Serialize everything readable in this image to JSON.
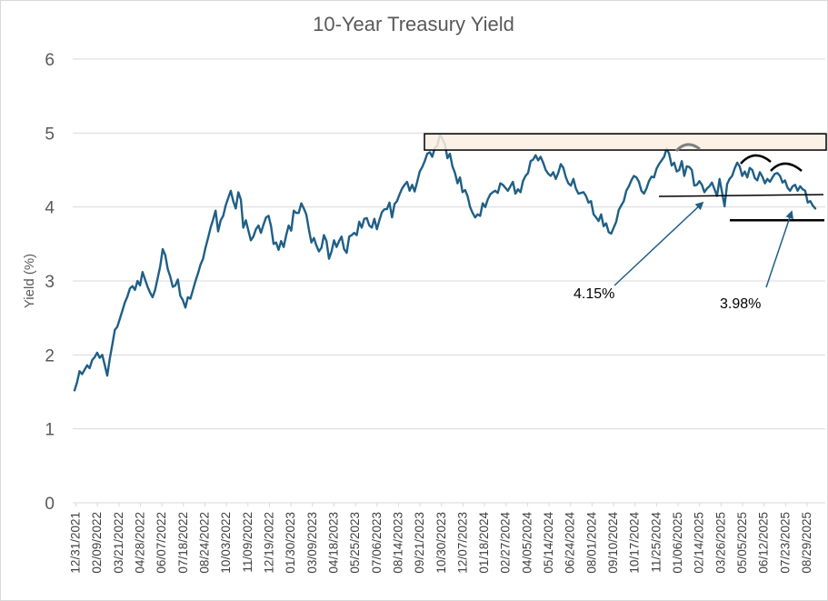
{
  "chart_data": {
    "type": "line",
    "title": "10-Year Treasury Yield",
    "xlabel": "",
    "ylabel": "Yield (%)",
    "ylim": [
      0,
      6
    ],
    "yticks": [
      0,
      1,
      2,
      3,
      4,
      5,
      6
    ],
    "grid": true,
    "line_color": "#1f5f86",
    "x_ticks": [
      "12/31/2021",
      "02/09/2022",
      "03/21/2022",
      "04/28/2022",
      "06/07/2022",
      "07/18/2022",
      "08/24/2022",
      "10/03/2022",
      "11/09/2022",
      "12/19/2022",
      "01/30/2023",
      "03/09/2023",
      "04/18/2023",
      "05/25/2023",
      "07/06/2023",
      "08/14/2023",
      "09/21/2023",
      "10/30/2023",
      "12/07/2023",
      "01/18/2024",
      "02/27/2024",
      "04/05/2024",
      "05/14/2024",
      "06/24/2024",
      "08/01/2024",
      "09/10/2024",
      "10/17/2024",
      "11/25/2024",
      "01/06/2025",
      "02/14/2025",
      "03/26/2025",
      "05/05/2025",
      "06/12/2025",
      "07/23/2025",
      "08/29/2025"
    ],
    "series": [
      {
        "name": "10-Year Treasury Yield",
        "start_date": "12/31/2021",
        "interval": "approx. 2 trading days",
        "values": [
          1.52,
          1.63,
          1.78,
          1.74,
          1.8,
          1.86,
          1.82,
          1.93,
          1.97,
          2.03,
          1.96,
          2.0,
          1.86,
          1.72,
          1.95,
          2.14,
          2.34,
          2.38,
          2.49,
          2.6,
          2.71,
          2.79,
          2.9,
          2.93,
          2.88,
          3.0,
          2.94,
          3.12,
          3.02,
          2.92,
          2.84,
          2.78,
          2.88,
          3.04,
          3.2,
          3.43,
          3.35,
          3.16,
          3.06,
          2.92,
          2.94,
          3.02,
          2.8,
          2.74,
          2.64,
          2.78,
          2.76,
          2.88,
          3.0,
          3.1,
          3.22,
          3.3,
          3.45,
          3.58,
          3.72,
          3.83,
          3.95,
          3.67,
          3.82,
          3.88,
          4.02,
          4.12,
          4.22,
          4.08,
          3.98,
          4.2,
          4.1,
          3.72,
          3.82,
          3.68,
          3.55,
          3.6,
          3.7,
          3.75,
          3.65,
          3.76,
          3.86,
          3.88,
          3.74,
          3.5,
          3.52,
          3.42,
          3.54,
          3.46,
          3.62,
          3.75,
          3.68,
          3.95,
          3.92,
          3.92,
          4.05,
          3.98,
          3.9,
          3.7,
          3.52,
          3.58,
          3.48,
          3.4,
          3.45,
          3.62,
          3.54,
          3.3,
          3.4,
          3.55,
          3.46,
          3.54,
          3.6,
          3.43,
          3.38,
          3.6,
          3.62,
          3.65,
          3.62,
          3.8,
          3.72,
          3.84,
          3.85,
          3.75,
          3.72,
          3.84,
          3.7,
          3.82,
          3.93,
          3.97,
          3.97,
          4.06,
          3.86,
          4.04,
          4.08,
          4.17,
          4.25,
          4.3,
          4.34,
          4.22,
          4.3,
          4.21,
          4.34,
          4.48,
          4.54,
          4.62,
          4.72,
          4.74,
          4.68,
          4.8,
          4.83,
          4.98,
          4.92,
          4.85,
          4.66,
          4.72,
          4.55,
          4.46,
          4.32,
          4.4,
          4.2,
          4.23,
          4.15,
          4.0,
          3.92,
          3.86,
          3.9,
          3.88,
          4.05,
          4.0,
          4.1,
          4.17,
          4.2,
          4.22,
          4.19,
          4.32,
          4.3,
          4.26,
          4.22,
          4.28,
          4.34,
          4.18,
          4.24,
          4.2,
          4.35,
          4.42,
          4.46,
          4.62,
          4.64,
          4.7,
          4.63,
          4.68,
          4.6,
          4.5,
          4.45,
          4.42,
          4.47,
          4.38,
          4.46,
          4.58,
          4.53,
          4.4,
          4.32,
          4.29,
          4.38,
          4.25,
          4.18,
          4.19,
          4.2,
          4.15,
          4.06,
          4.08,
          3.9,
          3.86,
          3.81,
          3.9,
          3.74,
          3.78,
          3.66,
          3.64,
          3.72,
          3.8,
          3.96,
          4.02,
          4.08,
          4.22,
          4.28,
          4.36,
          4.42,
          4.4,
          4.34,
          4.22,
          4.18,
          4.25,
          4.35,
          4.41,
          4.4,
          4.52,
          4.58,
          4.63,
          4.68,
          4.79,
          4.72,
          4.56,
          4.6,
          4.48,
          4.5,
          4.62,
          4.42,
          4.55,
          4.54,
          4.5,
          4.29,
          4.3,
          4.35,
          4.3,
          4.2,
          4.25,
          4.28,
          4.33,
          4.24,
          4.15,
          4.38,
          4.2,
          4.01,
          4.31,
          4.38,
          4.42,
          4.52,
          4.6,
          4.55,
          4.42,
          4.48,
          4.4,
          4.53,
          4.5,
          4.39,
          4.36,
          4.47,
          4.41,
          4.32,
          4.38,
          4.34,
          4.4,
          4.45,
          4.46,
          4.42,
          4.33,
          4.36,
          4.26,
          4.22,
          4.28,
          4.3,
          4.22,
          4.28,
          4.24,
          4.22,
          4.06,
          4.08,
          4.02,
          3.98
        ]
      }
    ],
    "annotations": [
      {
        "label": "4.15%",
        "kind": "support trendline with arrow",
        "value": 4.15
      },
      {
        "label": "3.98%",
        "kind": "horizontal support line with arrow",
        "value": 3.98
      },
      {
        "label": "",
        "kind": "shaded resistance zone",
        "y_range": [
          4.77,
          4.99
        ]
      },
      {
        "label": "",
        "kind": "top arcs (rounded peaks)",
        "count": 3
      }
    ]
  }
}
